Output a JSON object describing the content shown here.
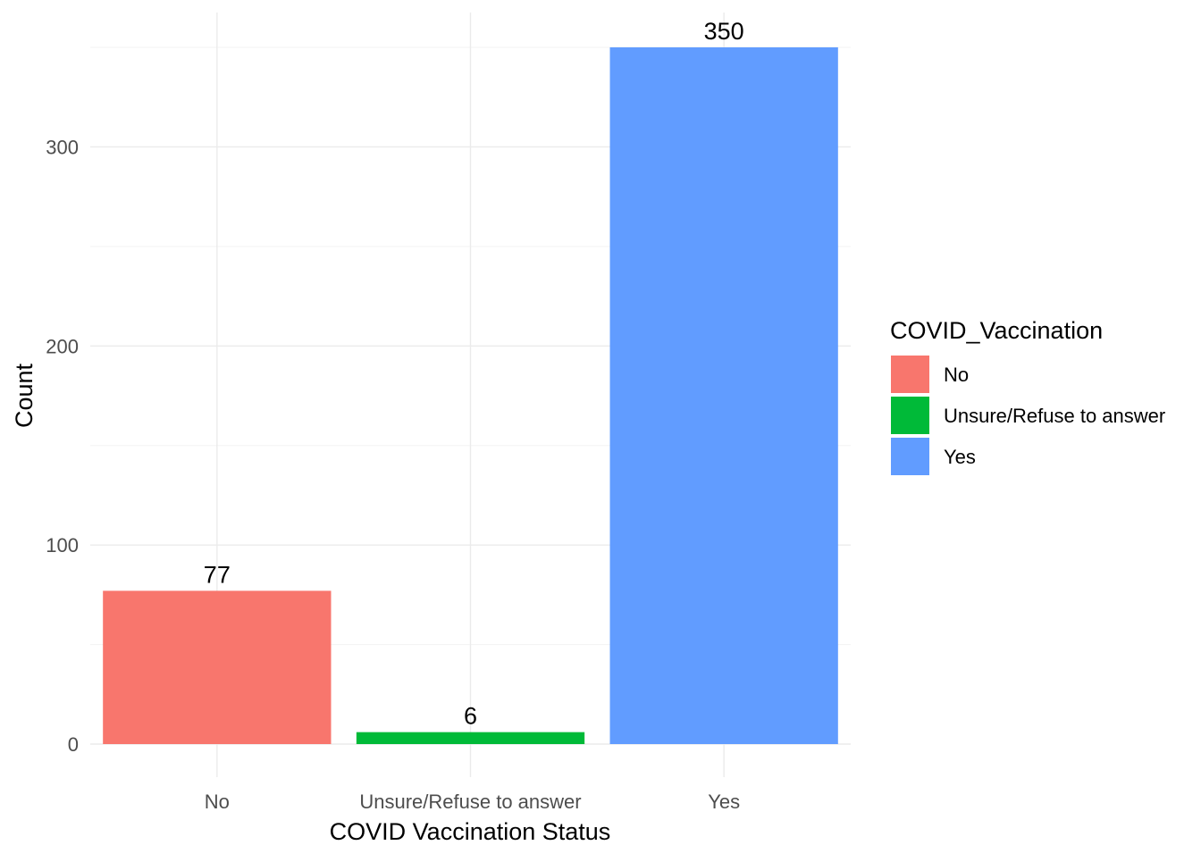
{
  "chart_data": {
    "type": "bar",
    "title": "",
    "xlabel": "COVID Vaccination Status",
    "ylabel": "Count",
    "categories": [
      "No",
      "Unsure/Refuse to answer",
      "Yes"
    ],
    "values": [
      77,
      6,
      350
    ],
    "data_labels": [
      "77",
      "6",
      "350"
    ],
    "colors": [
      "#F8766D",
      "#00BA38",
      "#619CFF"
    ],
    "ylim": [
      0,
      350
    ],
    "yticks": [
      0,
      100,
      200,
      300
    ],
    "ytick_labels": [
      "0",
      "100",
      "200",
      "300"
    ],
    "grid": true,
    "legend": {
      "title": "COVID_Vaccination",
      "position": "right",
      "entries": [
        "No",
        "Unsure/Refuse to answer",
        "Yes"
      ]
    }
  }
}
